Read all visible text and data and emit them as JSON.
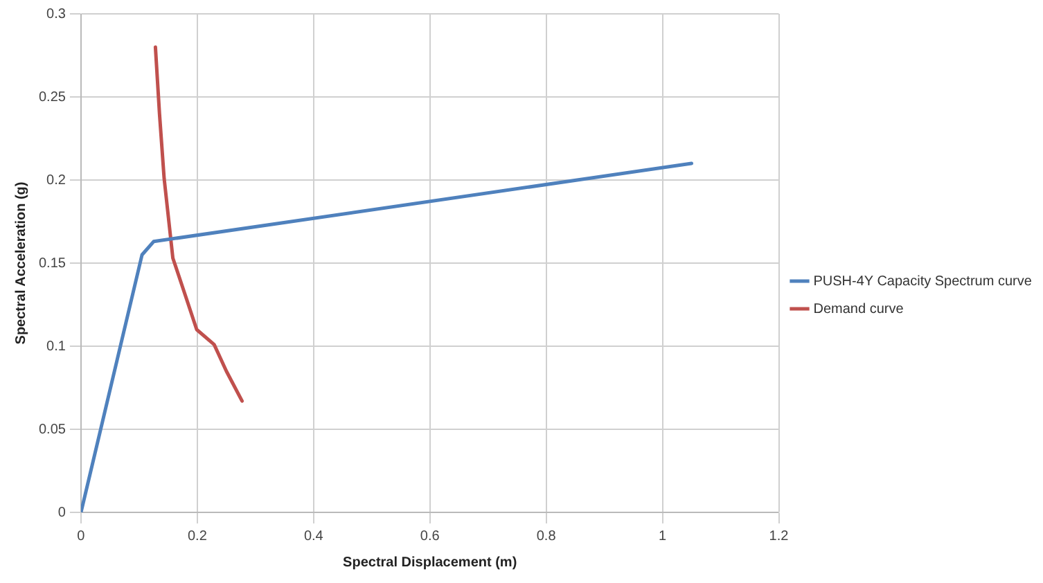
{
  "chart_data": {
    "type": "line",
    "xlabel": "Spectral Displacement (m)",
    "ylabel": "Spectral Acceleration (g)",
    "xlim": [
      0,
      1.2
    ],
    "xticks": [
      0,
      0.2,
      0.4,
      0.6,
      0.8,
      1,
      1.2
    ],
    "ylim": [
      0,
      0.3
    ],
    "yticks": [
      0,
      0.05,
      0.1,
      0.15,
      0.2,
      0.25,
      0.3
    ],
    "grid": true,
    "legend": "right",
    "marker": "none",
    "line_style": "solid",
    "series": [
      {
        "name": "PUSH-4Y Capacity Spectrum curve",
        "color": "#4f81bd",
        "x": [
          0,
          0.105,
          0.125,
          1.05
        ],
        "values": [
          0,
          0.155,
          0.163,
          0.21
        ]
      },
      {
        "name": "Demand curve",
        "color": "#c0504d",
        "x": [
          0.128,
          0.135,
          0.143,
          0.158,
          0.18,
          0.199,
          0.229,
          0.25,
          0.277
        ],
        "values": [
          0.28,
          0.24,
          0.201,
          0.153,
          0.13,
          0.11,
          0.101,
          0.085,
          0.067
        ]
      }
    ]
  }
}
